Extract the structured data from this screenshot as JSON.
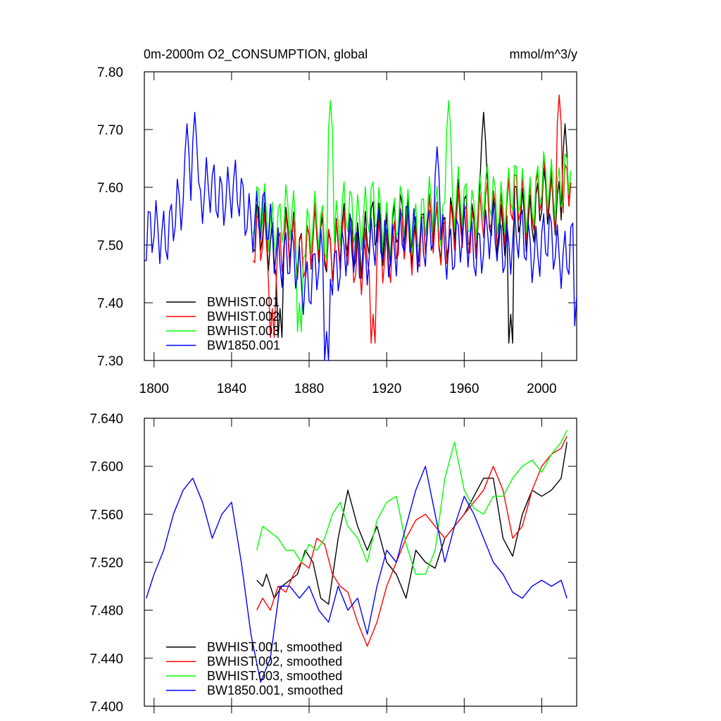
{
  "chart_data": [
    {
      "type": "line",
      "title_left": "0m-2000m O2_CONSUMPTION, global",
      "title_right": "mmol/m^3/y",
      "xlim": [
        1795,
        2018
      ],
      "ylim": [
        7.3,
        7.8
      ],
      "xticks": [
        1800,
        1840,
        1880,
        1920,
        1960,
        2000
      ],
      "yticks": [
        7.3,
        7.4,
        7.5,
        7.6,
        7.7,
        7.8
      ],
      "ytick_labels": [
        "7.30",
        "7.40",
        "7.50",
        "7.60",
        "7.70",
        "7.80"
      ],
      "legend_position": "bottom-left",
      "series": [
        {
          "name": "BWHIST.001",
          "color": "#000000",
          "x_start": 1851,
          "x_end": 2015,
          "base": [
            7.52,
            7.5,
            7.5,
            7.51,
            7.53,
            7.52,
            7.55,
            7.54,
            7.56,
            7.6
          ],
          "values": [
            [
              1970,
              7.73
            ],
            [
              1984,
              7.38
            ],
            [
              2012,
              7.71
            ],
            [
              1865,
              7.39
            ]
          ]
        },
        {
          "name": "BWHIST.002",
          "color": "#ff0000",
          "x_start": 1851,
          "x_end": 2015,
          "base": [
            7.5,
            7.49,
            7.51,
            7.48,
            7.5,
            7.52,
            7.53,
            7.56,
            7.58,
            7.6
          ],
          "values": [
            [
              2009,
              7.76
            ],
            [
              1913,
              7.38
            ],
            [
              1861,
              7.39
            ]
          ]
        },
        {
          "name": "BWHIST.003",
          "color": "#00ff00",
          "x_start": 1851,
          "x_end": 2015,
          "base": [
            7.55,
            7.54,
            7.52,
            7.56,
            7.54,
            7.55,
            7.57,
            7.58,
            7.59,
            7.62
          ],
          "values": [
            [
              1891,
              7.75
            ],
            [
              1952,
              7.75
            ],
            [
              1875,
              7.4
            ]
          ]
        },
        {
          "name": "BW1850.001",
          "color": "#0000ff",
          "x_start": 1795,
          "x_end": 2018,
          "base": [
            7.5,
            7.56,
            7.6,
            7.54,
            7.44,
            7.48,
            7.5,
            7.52,
            7.5,
            7.51,
            7.5,
            7.49
          ],
          "values": [
            [
              1817,
              7.71
            ],
            [
              1821,
              7.73
            ],
            [
              1889,
              7.35
            ],
            [
              1946,
              7.67
            ],
            [
              2018,
              7.41
            ]
          ]
        }
      ]
    },
    {
      "type": "line",
      "xlim": [
        1795,
        2018
      ],
      "ylim": [
        7.4,
        7.64
      ],
      "xticks": [
        1800,
        1840,
        1880,
        1920,
        1960,
        2000
      ],
      "yticks": [
        7.4,
        7.44,
        7.48,
        7.52,
        7.56,
        7.6,
        7.64
      ],
      "ytick_labels": [
        "7.400",
        "7.440",
        "7.480",
        "7.520",
        "7.560",
        "7.600",
        "7.640"
      ],
      "legend_position": "bottom-left",
      "series": [
        {
          "name": "BWHIST.001, smoothed",
          "color": "#000000",
          "x": [
            1853,
            1856,
            1858,
            1862,
            1866,
            1870,
            1874,
            1878,
            1882,
            1886,
            1890,
            1895,
            1900,
            1905,
            1910,
            1915,
            1920,
            1925,
            1930,
            1935,
            1940,
            1945,
            1950,
            1955,
            1960,
            1965,
            1970,
            1975,
            1980,
            1985,
            1990,
            1995,
            2000,
            2005,
            2010,
            2013
          ],
          "values": [
            7.505,
            7.5,
            7.51,
            7.49,
            7.5,
            7.505,
            7.51,
            7.53,
            7.52,
            7.49,
            7.485,
            7.54,
            7.58,
            7.55,
            7.53,
            7.55,
            7.52,
            7.51,
            7.49,
            7.53,
            7.52,
            7.515,
            7.54,
            7.55,
            7.56,
            7.575,
            7.59,
            7.59,
            7.54,
            7.525,
            7.56,
            7.58,
            7.575,
            7.58,
            7.59,
            7.62
          ]
        },
        {
          "name": "BWHIST.002, smoothed",
          "color": "#ff0000",
          "x": [
            1853,
            1856,
            1860,
            1864,
            1868,
            1872,
            1876,
            1880,
            1884,
            1888,
            1892,
            1896,
            1900,
            1905,
            1910,
            1915,
            1920,
            1925,
            1930,
            1935,
            1940,
            1945,
            1950,
            1955,
            1960,
            1965,
            1970,
            1975,
            1980,
            1985,
            1990,
            1995,
            2000,
            2005,
            2010,
            2013
          ],
          "values": [
            7.48,
            7.49,
            7.48,
            7.5,
            7.495,
            7.51,
            7.52,
            7.515,
            7.54,
            7.535,
            7.51,
            7.5,
            7.495,
            7.47,
            7.45,
            7.47,
            7.5,
            7.52,
            7.54,
            7.555,
            7.56,
            7.55,
            7.54,
            7.55,
            7.56,
            7.57,
            7.58,
            7.6,
            7.58,
            7.54,
            7.55,
            7.58,
            7.6,
            7.61,
            7.615,
            7.625
          ]
        },
        {
          "name": "BWHIST.003, smoothed",
          "color": "#00ff00",
          "x": [
            1853,
            1856,
            1860,
            1864,
            1868,
            1872,
            1876,
            1880,
            1884,
            1888,
            1892,
            1896,
            1900,
            1905,
            1910,
            1915,
            1920,
            1925,
            1930,
            1935,
            1940,
            1945,
            1950,
            1955,
            1960,
            1965,
            1970,
            1975,
            1980,
            1985,
            1990,
            1995,
            2000,
            2005,
            2010,
            2013
          ],
          "values": [
            7.53,
            7.55,
            7.545,
            7.54,
            7.53,
            7.53,
            7.52,
            7.535,
            7.53,
            7.54,
            7.56,
            7.57,
            7.55,
            7.54,
            7.52,
            7.555,
            7.57,
            7.575,
            7.535,
            7.51,
            7.51,
            7.53,
            7.59,
            7.62,
            7.58,
            7.565,
            7.56,
            7.575,
            7.575,
            7.59,
            7.6,
            7.605,
            7.595,
            7.61,
            7.62,
            7.63
          ]
        },
        {
          "name": "BW1850.001, smoothed",
          "color": "#0000ff",
          "x": [
            1796,
            1800,
            1805,
            1810,
            1815,
            1820,
            1825,
            1830,
            1835,
            1840,
            1845,
            1850,
            1855,
            1860,
            1865,
            1870,
            1875,
            1880,
            1885,
            1890,
            1895,
            1900,
            1905,
            1910,
            1915,
            1920,
            1925,
            1930,
            1935,
            1940,
            1945,
            1950,
            1955,
            1960,
            1965,
            1970,
            1975,
            1980,
            1985,
            1990,
            1995,
            2000,
            2005,
            2010,
            2013
          ],
          "values": [
            7.49,
            7.51,
            7.53,
            7.56,
            7.58,
            7.59,
            7.57,
            7.54,
            7.56,
            7.57,
            7.52,
            7.46,
            7.42,
            7.44,
            7.5,
            7.5,
            7.49,
            7.5,
            7.48,
            7.47,
            7.5,
            7.48,
            7.49,
            7.46,
            7.5,
            7.53,
            7.52,
            7.55,
            7.58,
            7.6,
            7.56,
            7.52,
            7.55,
            7.575,
            7.56,
            7.54,
            7.52,
            7.51,
            7.495,
            7.49,
            7.5,
            7.505,
            7.5,
            7.505,
            7.49
          ]
        }
      ]
    }
  ]
}
